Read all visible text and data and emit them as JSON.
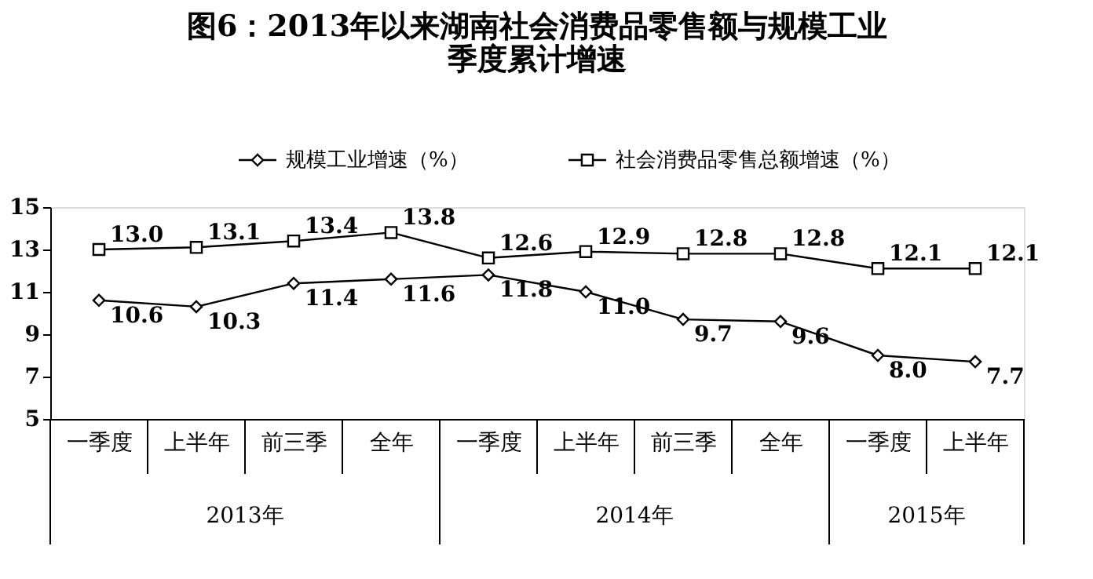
{
  "chart_data": {
    "type": "line",
    "title": "图6：2013年以来湖南社会消费品零售额与规模工业季度累计增速",
    "categories": [
      "一季度",
      "上半年",
      "前三季",
      "全年",
      "一季度",
      "上半年",
      "前三季",
      "全年",
      "一季度",
      "上半年"
    ],
    "series": [
      {
        "name": "规模工业增速（%）",
        "color": "#000000",
        "marker": "diamond",
        "values": [
          10.6,
          10.3,
          11.4,
          11.6,
          11.8,
          11.0,
          9.7,
          9.6,
          8.0,
          7.7
        ],
        "value_labels": [
          "10.6",
          "10.3",
          "11.4",
          "11.6",
          "11.8",
          "11.0",
          "9.7",
          "9.6",
          "8.0",
          "7.7"
        ]
      },
      {
        "name": "社会消费品零售总额增速（%）",
        "color": "#000000",
        "marker": "square",
        "values": [
          13.0,
          13.1,
          13.4,
          13.8,
          12.6,
          12.9,
          12.8,
          12.8,
          12.1,
          12.1
        ],
        "value_labels": [
          "13.0",
          "13.1",
          "13.4",
          "13.8",
          "12.6",
          "12.9",
          "12.8",
          "12.8",
          "12.1",
          "12.1"
        ]
      }
    ],
    "ylim": [
      5,
      15
    ],
    "yticks": [
      5,
      7,
      9,
      11,
      13,
      15
    ],
    "annotations": [
      "2013年",
      "2014年",
      "2015年"
    ],
    "legend": "top",
    "grid": false,
    "line_style": "solid"
  }
}
